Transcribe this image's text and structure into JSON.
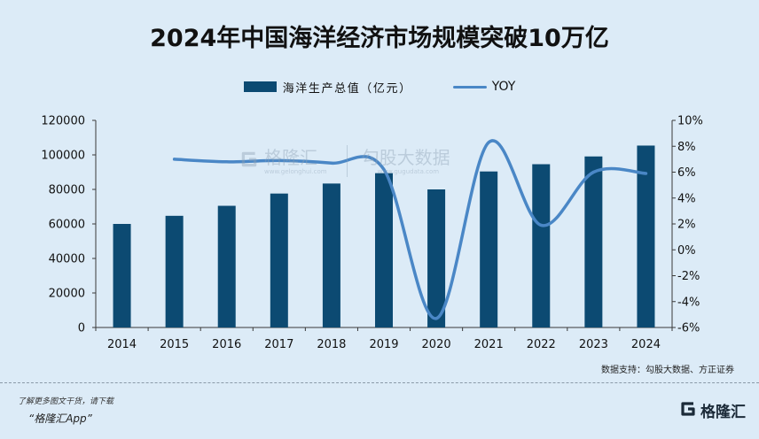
{
  "chart_data": {
    "type": "bar",
    "title": "2024年中国海洋经济市场规模突破10万亿",
    "categories": [
      "2014",
      "2015",
      "2016",
      "2017",
      "2018",
      "2019",
      "2020",
      "2021",
      "2022",
      "2023",
      "2024"
    ],
    "series": [
      {
        "name": "海洋生产总值（亿元）",
        "type": "bar",
        "values": [
          60000,
          64700,
          70500,
          77600,
          83400,
          89400,
          80000,
          90400,
          94600,
          99100,
          105400
        ]
      },
      {
        "name": "YOY",
        "type": "line",
        "secondary_axis": true,
        "values": [
          null,
          7.0,
          6.8,
          6.9,
          6.7,
          6.2,
          -5.3,
          8.3,
          1.9,
          6.0,
          5.9
        ]
      }
    ],
    "y_left": {
      "ylim": [
        0,
        120000
      ],
      "ticks": [
        "0",
        "20000",
        "40000",
        "60000",
        "80000",
        "100000",
        "120000"
      ]
    },
    "y_right": {
      "ylim": [
        -6,
        10
      ],
      "ticks": [
        "-6%",
        "-4%",
        "-2%",
        "0%",
        "2%",
        "4%",
        "6%",
        "8%",
        "10%"
      ]
    },
    "grid": false,
    "legend": "top-center",
    "colors": {
      "bar": "#0c4a72",
      "line": "#4a87c6",
      "axis": "#3a3a3a",
      "background": "#dcebf7"
    },
    "source": "数据支持：勾股大数据、方正证券"
  },
  "watermark": {
    "brand": "格隆汇",
    "brand_url": "www.gelonghui.com",
    "partner": "勾股大数据",
    "partner_url": "www.gugudata.com",
    "icon": "gelonghui-logo-icon"
  },
  "footer": {
    "prompt": "了解更多图文干货，请下载",
    "app": "“格隆汇App”",
    "logo_text": "格隆汇",
    "logo_icon": "gelonghui-logo-icon"
  }
}
